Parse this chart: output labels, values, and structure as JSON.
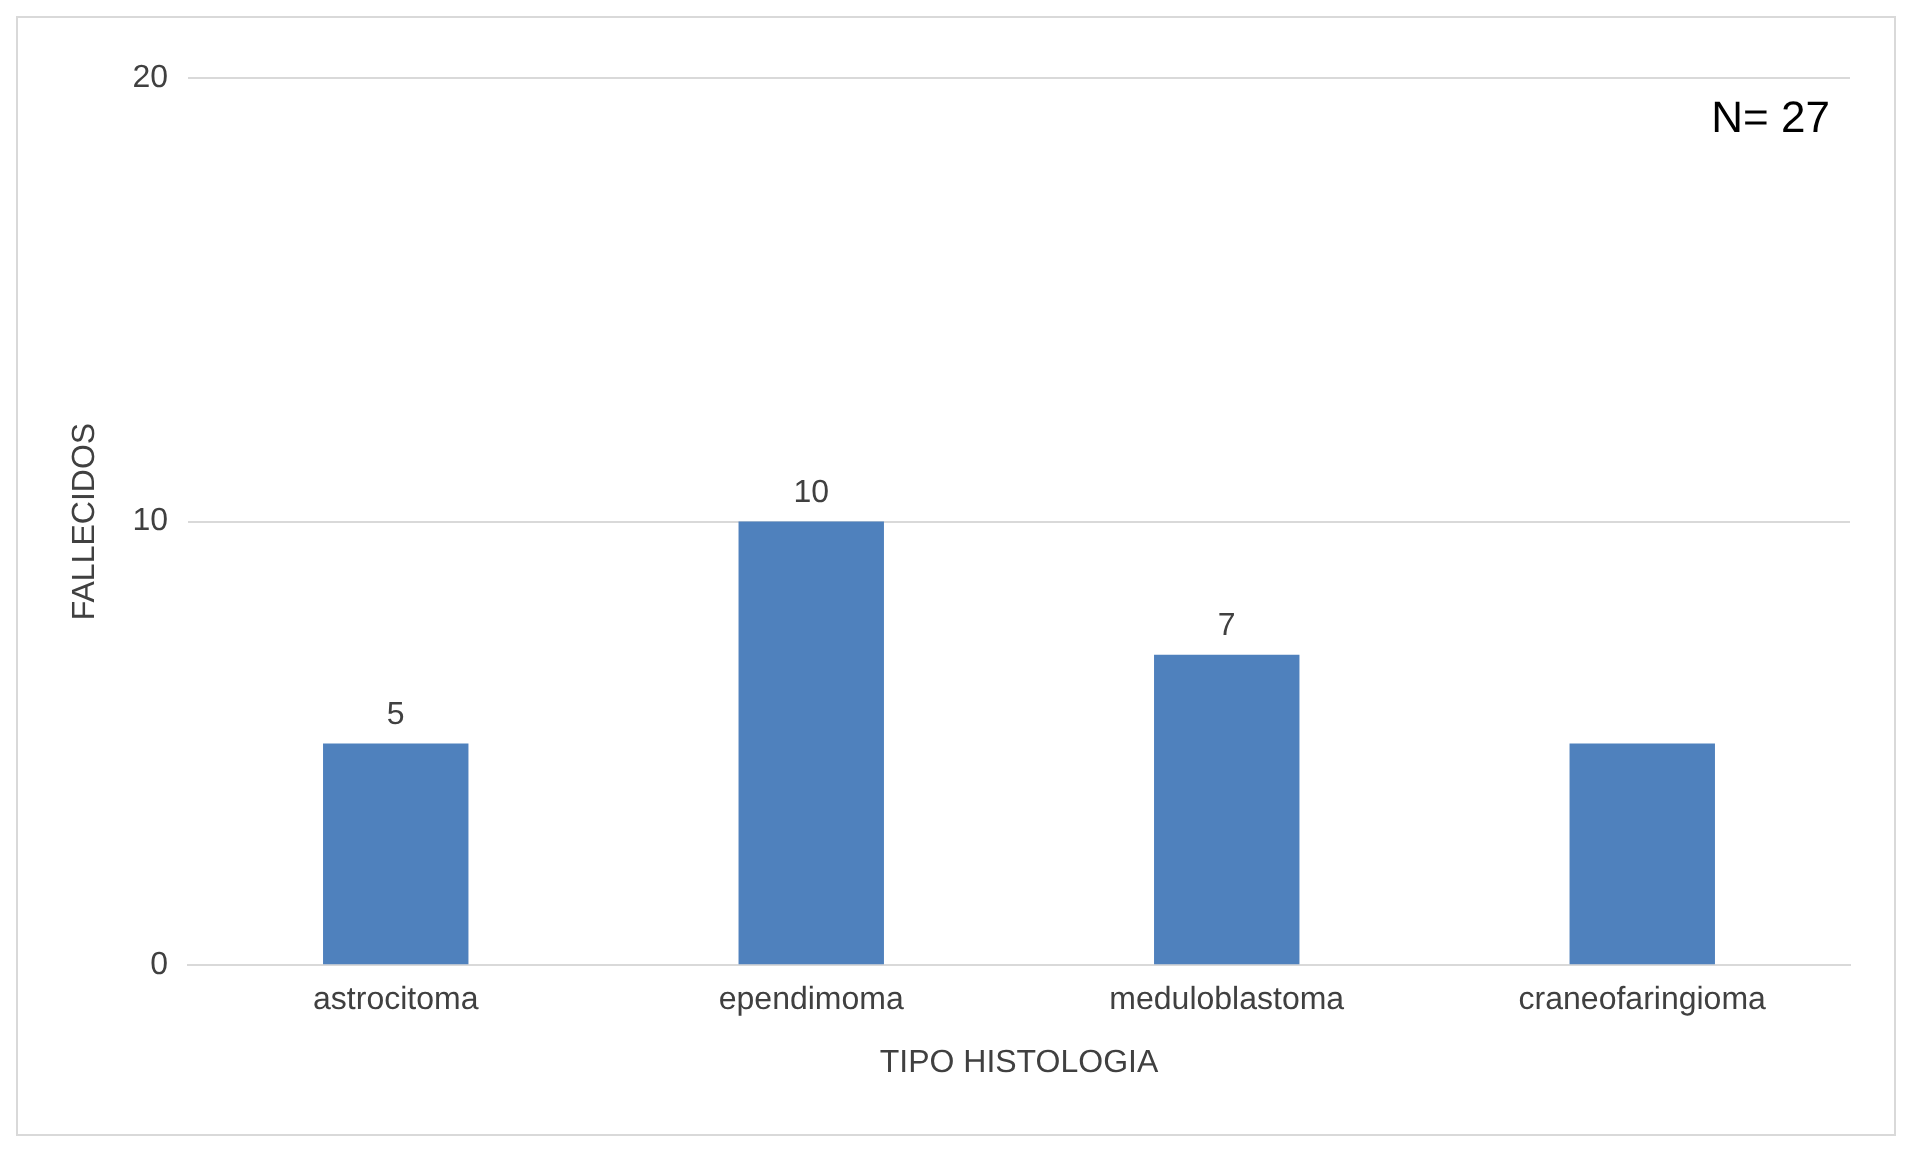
{
  "chart_data": {
    "type": "bar",
    "categories": [
      "astrocitoma",
      "ependimoma",
      "meduloblastoma",
      "craneofaringioma"
    ],
    "values": [
      5,
      10,
      7,
      5
    ],
    "value_labels": [
      "5",
      "10",
      "7",
      null
    ],
    "color": "#4f81bd",
    "xlabel": "TIPO HISTOLOGIA",
    "ylabel": "FALLECIDOS",
    "ylim": [
      0,
      20
    ],
    "yticks": [
      0,
      10,
      20
    ],
    "grid": "y",
    "legend": false,
    "annotations": [
      "N= 27"
    ]
  }
}
